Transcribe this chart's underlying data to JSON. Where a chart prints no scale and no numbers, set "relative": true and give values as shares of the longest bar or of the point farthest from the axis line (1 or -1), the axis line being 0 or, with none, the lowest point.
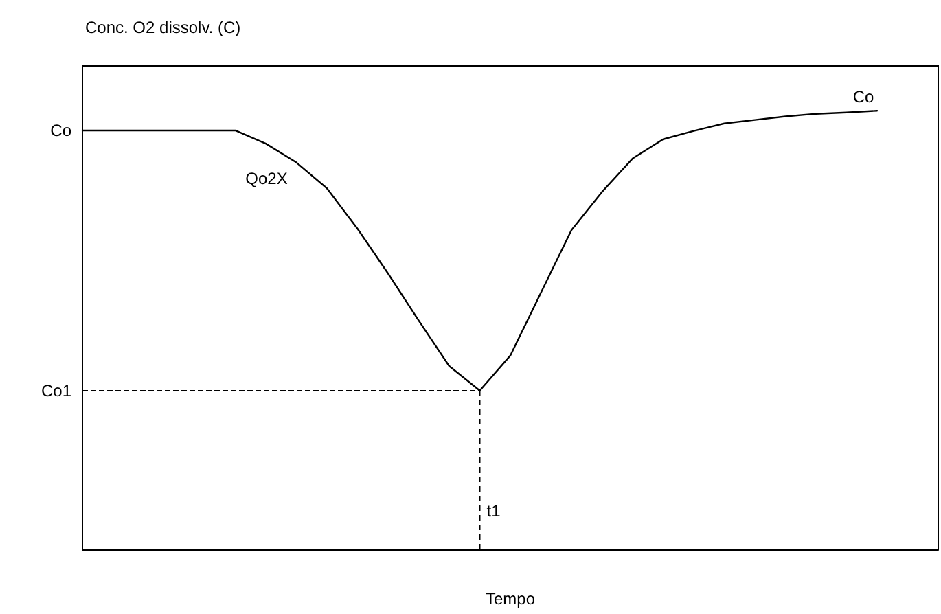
{
  "chart_data": {
    "type": "line",
    "relative": true,
    "ylabel": "Conc. O2 dissolv. (C)",
    "xlabel": "Tempo",
    "categories": [
      null,
      null,
      null,
      null,
      null,
      null,
      null,
      null,
      null,
      null,
      null,
      null,
      null,
      null,
      null,
      null,
      null,
      null,
      null,
      null,
      null,
      null,
      null,
      null,
      null,
      null,
      null,
      null,
      null
    ],
    "tick_labels": false,
    "grid": false,
    "marker": "none",
    "line_style": "solid",
    "series": [
      {
        "color": "#000000",
        "values": [
          0.955,
          0.955,
          0.955,
          0.955,
          0.955,
          0.955,
          0.925,
          0.882,
          0.823,
          0.731,
          0.629,
          0.522,
          0.418,
          0.362,
          0.442,
          0.585,
          0.728,
          0.815,
          0.891,
          0.935,
          0.954,
          0.971,
          0.979,
          0.987,
          0.993,
          0.996,
          1,
          null,
          null
        ]
      }
    ],
    "ref_lines": [
      {
        "axis": "y",
        "value": 0.362,
        "label": "Co1",
        "line_style": "dashed"
      },
      {
        "axis": "x",
        "label": "t1",
        "line_style": "dashed"
      }
    ],
    "annotations": [
      "Co",
      "Co",
      "Qo2X"
    ]
  }
}
